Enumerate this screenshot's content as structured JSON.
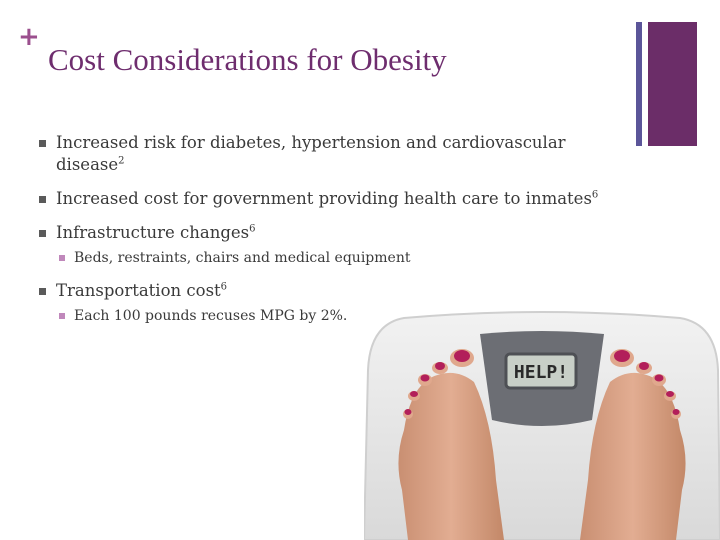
{
  "slide": {
    "title": "Cost Considerations for Obesity",
    "plus_glyph": "+",
    "colors": {
      "title": "#6e2d6e",
      "accent_bar": "#6b2d68",
      "thin_bar": "#5b5599",
      "sub_bullet": "#c088bb"
    }
  },
  "bullets": [
    {
      "text": "Increased risk for diabetes, hypertension and cardiovascular disease",
      "ref": "2"
    },
    {
      "text": "Increased cost for government providing health care to inmates",
      "ref": "6"
    },
    {
      "text": "Infrastructure changes",
      "ref": "6",
      "sub": [
        {
          "text": "Beds, restraints, chairs and medical equipment"
        }
      ]
    },
    {
      "text": "Transportation cost",
      "ref": "6",
      "sub": [
        {
          "text": "Each 100 pounds recuses MPG by 2%."
        }
      ]
    }
  ],
  "image": {
    "display_text": "HELP!"
  }
}
